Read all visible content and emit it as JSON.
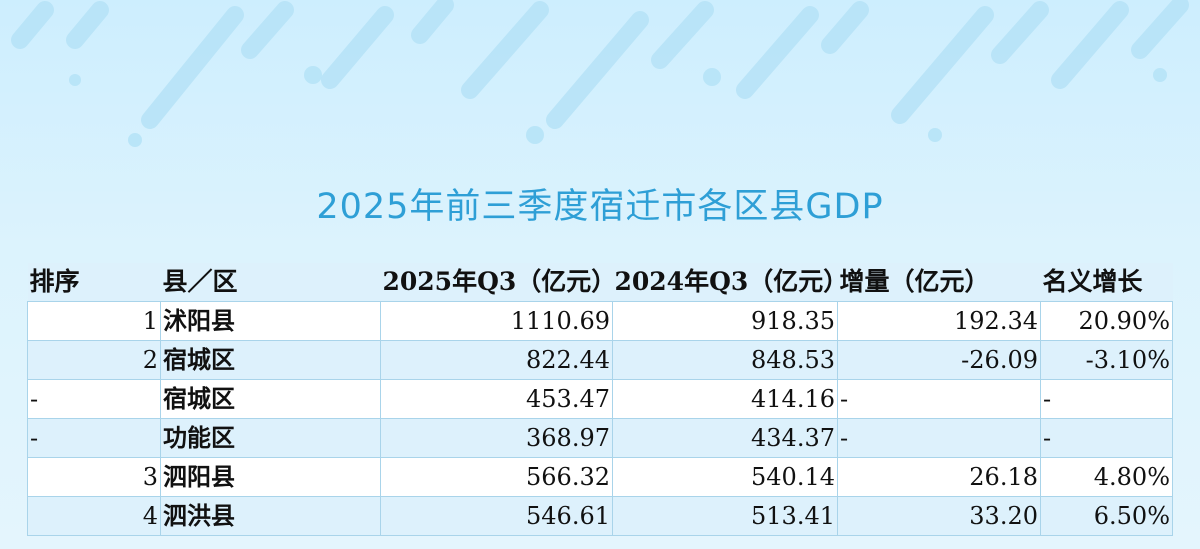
{
  "title": "2025年前三季度宿迁市各区县GDP",
  "headers": {
    "rank": "排序",
    "county": "县／区",
    "gdp_2025": "2025年Q3（亿元）",
    "gdp_2024": "2024年Q3（亿元）",
    "increase": "增量（亿元）",
    "growth": "名义增长"
  },
  "rows": [
    {
      "rank": "1",
      "county": "沭阳县",
      "gdp_2025": "1110.69",
      "gdp_2024": "918.35",
      "increase": "192.34",
      "growth": "20.90%"
    },
    {
      "rank": "2",
      "county": "宿城区",
      "gdp_2025": "822.44",
      "gdp_2024": "848.53",
      "increase": "-26.09",
      "growth": "-3.10%"
    },
    {
      "rank": "-",
      "county": "宿城区",
      "gdp_2025": "453.47",
      "gdp_2024": "414.16",
      "increase": "-",
      "growth": "-"
    },
    {
      "rank": "-",
      "county": "功能区",
      "gdp_2025": "368.97",
      "gdp_2024": "434.37",
      "increase": "-",
      "growth": "-"
    },
    {
      "rank": "3",
      "county": "泗阳县",
      "gdp_2025": "566.32",
      "gdp_2024": "540.14",
      "increase": "26.18",
      "growth": "4.80%"
    },
    {
      "rank": "4",
      "county": "泗洪县",
      "gdp_2025": "546.61",
      "gdp_2024": "513.41",
      "increase": "33.20",
      "growth": "6.50%"
    }
  ],
  "colors": {
    "title": "#2e9fd6",
    "decor": "#9fd9f3",
    "row_alt": "#ddf1fc",
    "border": "#a9d4ea"
  }
}
